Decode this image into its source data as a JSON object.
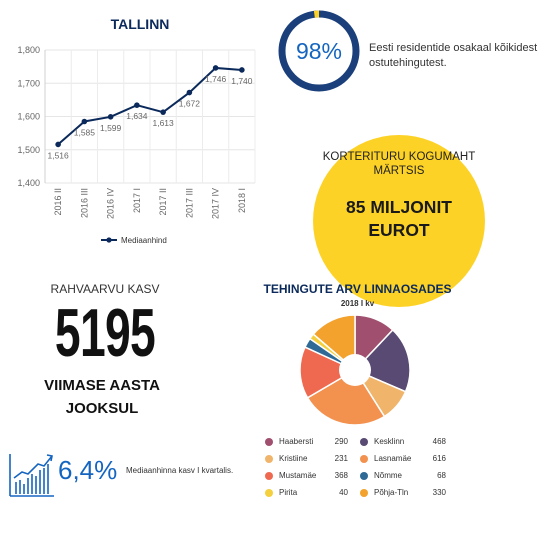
{
  "line_chart": {
    "title": "TALLINN",
    "legend": "Mediaanhind"
  },
  "residents": {
    "percent_label": "98%",
    "percent": 98,
    "text": "Eesti residentide osakaal kõikidest ostutehingutest."
  },
  "volume": {
    "heading": "KORTERITURU KOGUMAHT MÄRTSIS",
    "value": "85 MILJONIT EUROT"
  },
  "population": {
    "label": "RAHVAARVU KASV",
    "number": "5195",
    "caption": "VIIMASE AASTA JOOKSUL"
  },
  "growth": {
    "value": "6,4%",
    "text": "Mediaanhinna kasv I kvartalis."
  },
  "pie_chart": {
    "title": "TEHINGUTE ARV LINNAOSADES",
    "subtitle": "2018 I kv"
  },
  "colors": {
    "navy": "#0b2a5b",
    "blue": "#1565c0",
    "yellow": "#fdd227"
  },
  "chart_data": [
    {
      "type": "line",
      "title": "TALLINN",
      "categories": [
        "2016 II",
        "2016 III",
        "2016 IV",
        "2017 I",
        "2017 II",
        "2017 III",
        "2017 IV",
        "2018 I"
      ],
      "series": [
        {
          "name": "Mediaanhind",
          "values": [
            1516,
            1585,
            1599,
            1634,
            1613,
            1672,
            1746,
            1740
          ],
          "color": "#0b2a5b"
        }
      ],
      "ylim": [
        1400,
        1800
      ],
      "yticks": [
        "1,400",
        "1,500",
        "1,600",
        "1,700",
        "1,800"
      ],
      "data_labels": [
        "1,516",
        "1,585",
        "1,599",
        "1,634",
        "1,613",
        "1,672",
        "1,746",
        "1,740"
      ],
      "grid": true,
      "legend_position": "bottom"
    },
    {
      "type": "pie",
      "title": "TEHINGUTE ARV LINNAOSADES",
      "subtitle": "2018 I kv",
      "categories": [
        "Haabersti",
        "Kesklinn",
        "Kristiine",
        "Lasnamäe",
        "Mustamäe",
        "Nõmme",
        "Pirita",
        "Põhja-Tln"
      ],
      "values": [
        290,
        468,
        231,
        616,
        368,
        68,
        40,
        330
      ],
      "value_labels": [
        "290",
        "468",
        "231",
        "616",
        "368",
        "68",
        "40",
        "330"
      ],
      "colors": [
        "#a0506e",
        "#584a72",
        "#f0b46a",
        "#f3914f",
        "#ef6950",
        "#2f6a96",
        "#f4d03f",
        "#f2a22d"
      ],
      "slice_order": [
        0,
        1,
        2,
        3,
        4,
        5,
        6,
        7
      ],
      "legend_position": "bottom"
    }
  ]
}
